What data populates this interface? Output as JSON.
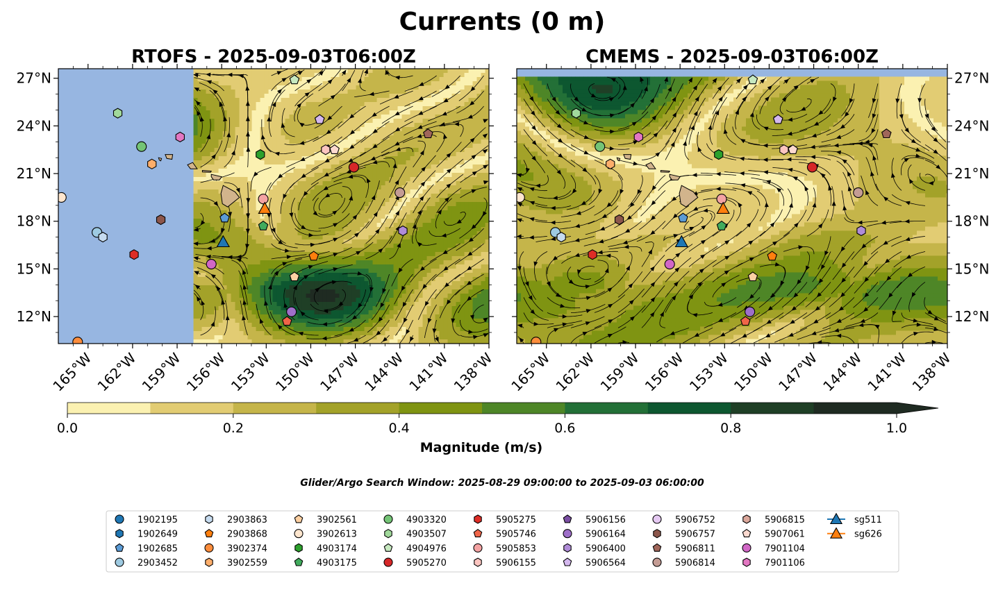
{
  "figure": {
    "title": "Currents (0 m)",
    "search_window": "Glider/Argo Search Window: 2025-08-29 09:00:00 to 2025-09-03 06:00:00"
  },
  "colors": {
    "land": "#d2b48c",
    "ocean_fill": "#97b6e1",
    "streamline": "#000000",
    "colormap": [
      "#fbf1b1",
      "#e2cc73",
      "#c5b54a",
      "#a3a229",
      "#7f9412",
      "#4e8627",
      "#237037",
      "#0d5730",
      "#1f3f26",
      "#1f2b22"
    ]
  },
  "colorbar": {
    "label": "Magnitude (m/s)",
    "ticks": [
      "0.0",
      "0.2",
      "0.4",
      "0.6",
      "0.8",
      "1.0"
    ],
    "min": 0.0,
    "max": 1.0,
    "step": 0.1,
    "extend": "max"
  },
  "chart_data": [
    {
      "type": "heatmap",
      "subtype": "contourf with streamlines",
      "title": "RTOFS - 2025-09-03T06:00Z",
      "x_ticks": [
        "165°W",
        "162°W",
        "159°W",
        "156°W",
        "153°W",
        "150°W",
        "147°W",
        "144°W",
        "141°W",
        "138°W"
      ],
      "y_ticks": [
        "27°N",
        "24°N",
        "21°N",
        "18°N",
        "15°N",
        "12°N"
      ],
      "xlim": [
        -167,
        -138
      ],
      "ylim": [
        10.3,
        27.6
      ],
      "data_coverage_lon": [
        -157.9,
        -138.0
      ],
      "y_tick_side": "left"
    },
    {
      "type": "heatmap",
      "subtype": "contourf with streamlines",
      "title": "CMEMS - 2025-09-03T06:00Z",
      "x_ticks": [
        "165°W",
        "162°W",
        "159°W",
        "156°W",
        "153°W",
        "150°W",
        "147°W",
        "144°W",
        "141°W",
        "138°W"
      ],
      "y_ticks": [
        "27°N",
        "24°N",
        "21°N",
        "18°N",
        "15°N",
        "12°N"
      ],
      "xlim": [
        -167,
        -138
      ],
      "ylim": [
        10.3,
        27.6
      ],
      "data_coverage_lat": [
        10.3,
        27.1
      ],
      "y_tick_side": "right"
    }
  ],
  "platforms": [
    {
      "id": "1902195",
      "marker": "circle",
      "color": "#1f77b4",
      "lon": null,
      "lat": null
    },
    {
      "id": "1902649",
      "marker": "hexagon",
      "color": "#1f77b4",
      "lon": null,
      "lat": null
    },
    {
      "id": "1902685",
      "marker": "pentagon",
      "color": "#5b9bd5",
      "lon": -155.8,
      "lat": 18.2
    },
    {
      "id": "2903452",
      "marker": "circle",
      "color": "#9ecae1",
      "lon": -164.4,
      "lat": 17.3
    },
    {
      "id": "2903863",
      "marker": "hexagon",
      "color": "#c6dbef",
      "lon": -164.0,
      "lat": 17.0
    },
    {
      "id": "2903868",
      "marker": "pentagon",
      "color": "#ff7f0e",
      "lon": -149.8,
      "lat": 15.8
    },
    {
      "id": "3902374",
      "marker": "circle",
      "color": "#fd8d3c",
      "lon": -165.7,
      "lat": 10.4
    },
    {
      "id": "3902559",
      "marker": "hexagon",
      "color": "#fdae6b",
      "lon": -160.7,
      "lat": 21.6
    },
    {
      "id": "3902561",
      "marker": "pentagon",
      "color": "#fdd0a2",
      "lon": -151.1,
      "lat": 14.5
    },
    {
      "id": "3902613",
      "marker": "circle",
      "color": "#fee6ce",
      "lon": -166.8,
      "lat": 19.5
    },
    {
      "id": "4903174",
      "marker": "hexagon",
      "color": "#2ca02c",
      "lon": -153.4,
      "lat": 22.2
    },
    {
      "id": "4903175",
      "marker": "pentagon",
      "color": "#41ab5d",
      "lon": -153.2,
      "lat": 17.7
    },
    {
      "id": "4903320",
      "marker": "circle",
      "color": "#74c476",
      "lon": -161.4,
      "lat": 22.7
    },
    {
      "id": "4903507",
      "marker": "hexagon",
      "color": "#a1d99b",
      "lon": -163.0,
      "lat": 24.8
    },
    {
      "id": "4904976",
      "marker": "pentagon",
      "color": "#c7e9c0",
      "lon": -151.1,
      "lat": 26.9
    },
    {
      "id": "5905270",
      "marker": "circle",
      "color": "#d62728",
      "lon": -147.1,
      "lat": 21.4
    },
    {
      "id": "5905275",
      "marker": "hexagon",
      "color": "#de2d26",
      "lon": -161.9,
      "lat": 15.9
    },
    {
      "id": "5905746",
      "marker": "pentagon",
      "color": "#ef6548",
      "lon": -151.6,
      "lat": 11.7
    },
    {
      "id": "5905853",
      "marker": "circle",
      "color": "#f4a3a3",
      "lon": -153.2,
      "lat": 19.4
    },
    {
      "id": "5906155",
      "marker": "hexagon",
      "color": "#fcc5c0",
      "lon": -149.0,
      "lat": 22.5
    },
    {
      "id": "5906156",
      "marker": "pentagon",
      "color": "#7b4ea3",
      "lon": -149.4,
      "lat": 24.4
    },
    {
      "id": "5906164",
      "marker": "circle",
      "color": "#9e6fc9",
      "lon": -151.3,
      "lat": 12.3
    },
    {
      "id": "5906400",
      "marker": "hexagon",
      "color": "#b08cd8",
      "lon": -143.8,
      "lat": 17.4
    },
    {
      "id": "5906564",
      "marker": "pentagon",
      "color": "#d4b8ee",
      "lon": -149.4,
      "lat": 24.4
    },
    {
      "id": "5906752",
      "marker": "circle",
      "color": "#e5c9f2",
      "lon": null,
      "lat": null
    },
    {
      "id": "5906757",
      "marker": "hexagon",
      "color": "#8c564b",
      "lon": -160.1,
      "lat": 18.1
    },
    {
      "id": "5906811",
      "marker": "pentagon",
      "color": "#a0665a",
      "lon": -142.1,
      "lat": 23.5
    },
    {
      "id": "5906814",
      "marker": "circle",
      "color": "#c49c94",
      "lon": -144.0,
      "lat": 19.8
    },
    {
      "id": "5906815",
      "marker": "hexagon",
      "color": "#dba79b",
      "lon": null,
      "lat": null
    },
    {
      "id": "5907061",
      "marker": "pentagon",
      "color": "#fcd9cf",
      "lon": -148.4,
      "lat": 22.5
    },
    {
      "id": "7901104",
      "marker": "circle",
      "color": "#d167c6",
      "lon": -156.7,
      "lat": 15.3
    },
    {
      "id": "7901106",
      "marker": "hexagon",
      "color": "#e377c2",
      "lon": -158.8,
      "lat": 23.3
    },
    {
      "id": "sg511",
      "marker": "triangle",
      "color": "#1f77b4",
      "line": true,
      "lon": -155.9,
      "lat": 16.7
    },
    {
      "id": "sg626",
      "marker": "triangle",
      "color": "#ff7f0e",
      "line": true,
      "lon": -153.1,
      "lat": 18.8
    }
  ]
}
